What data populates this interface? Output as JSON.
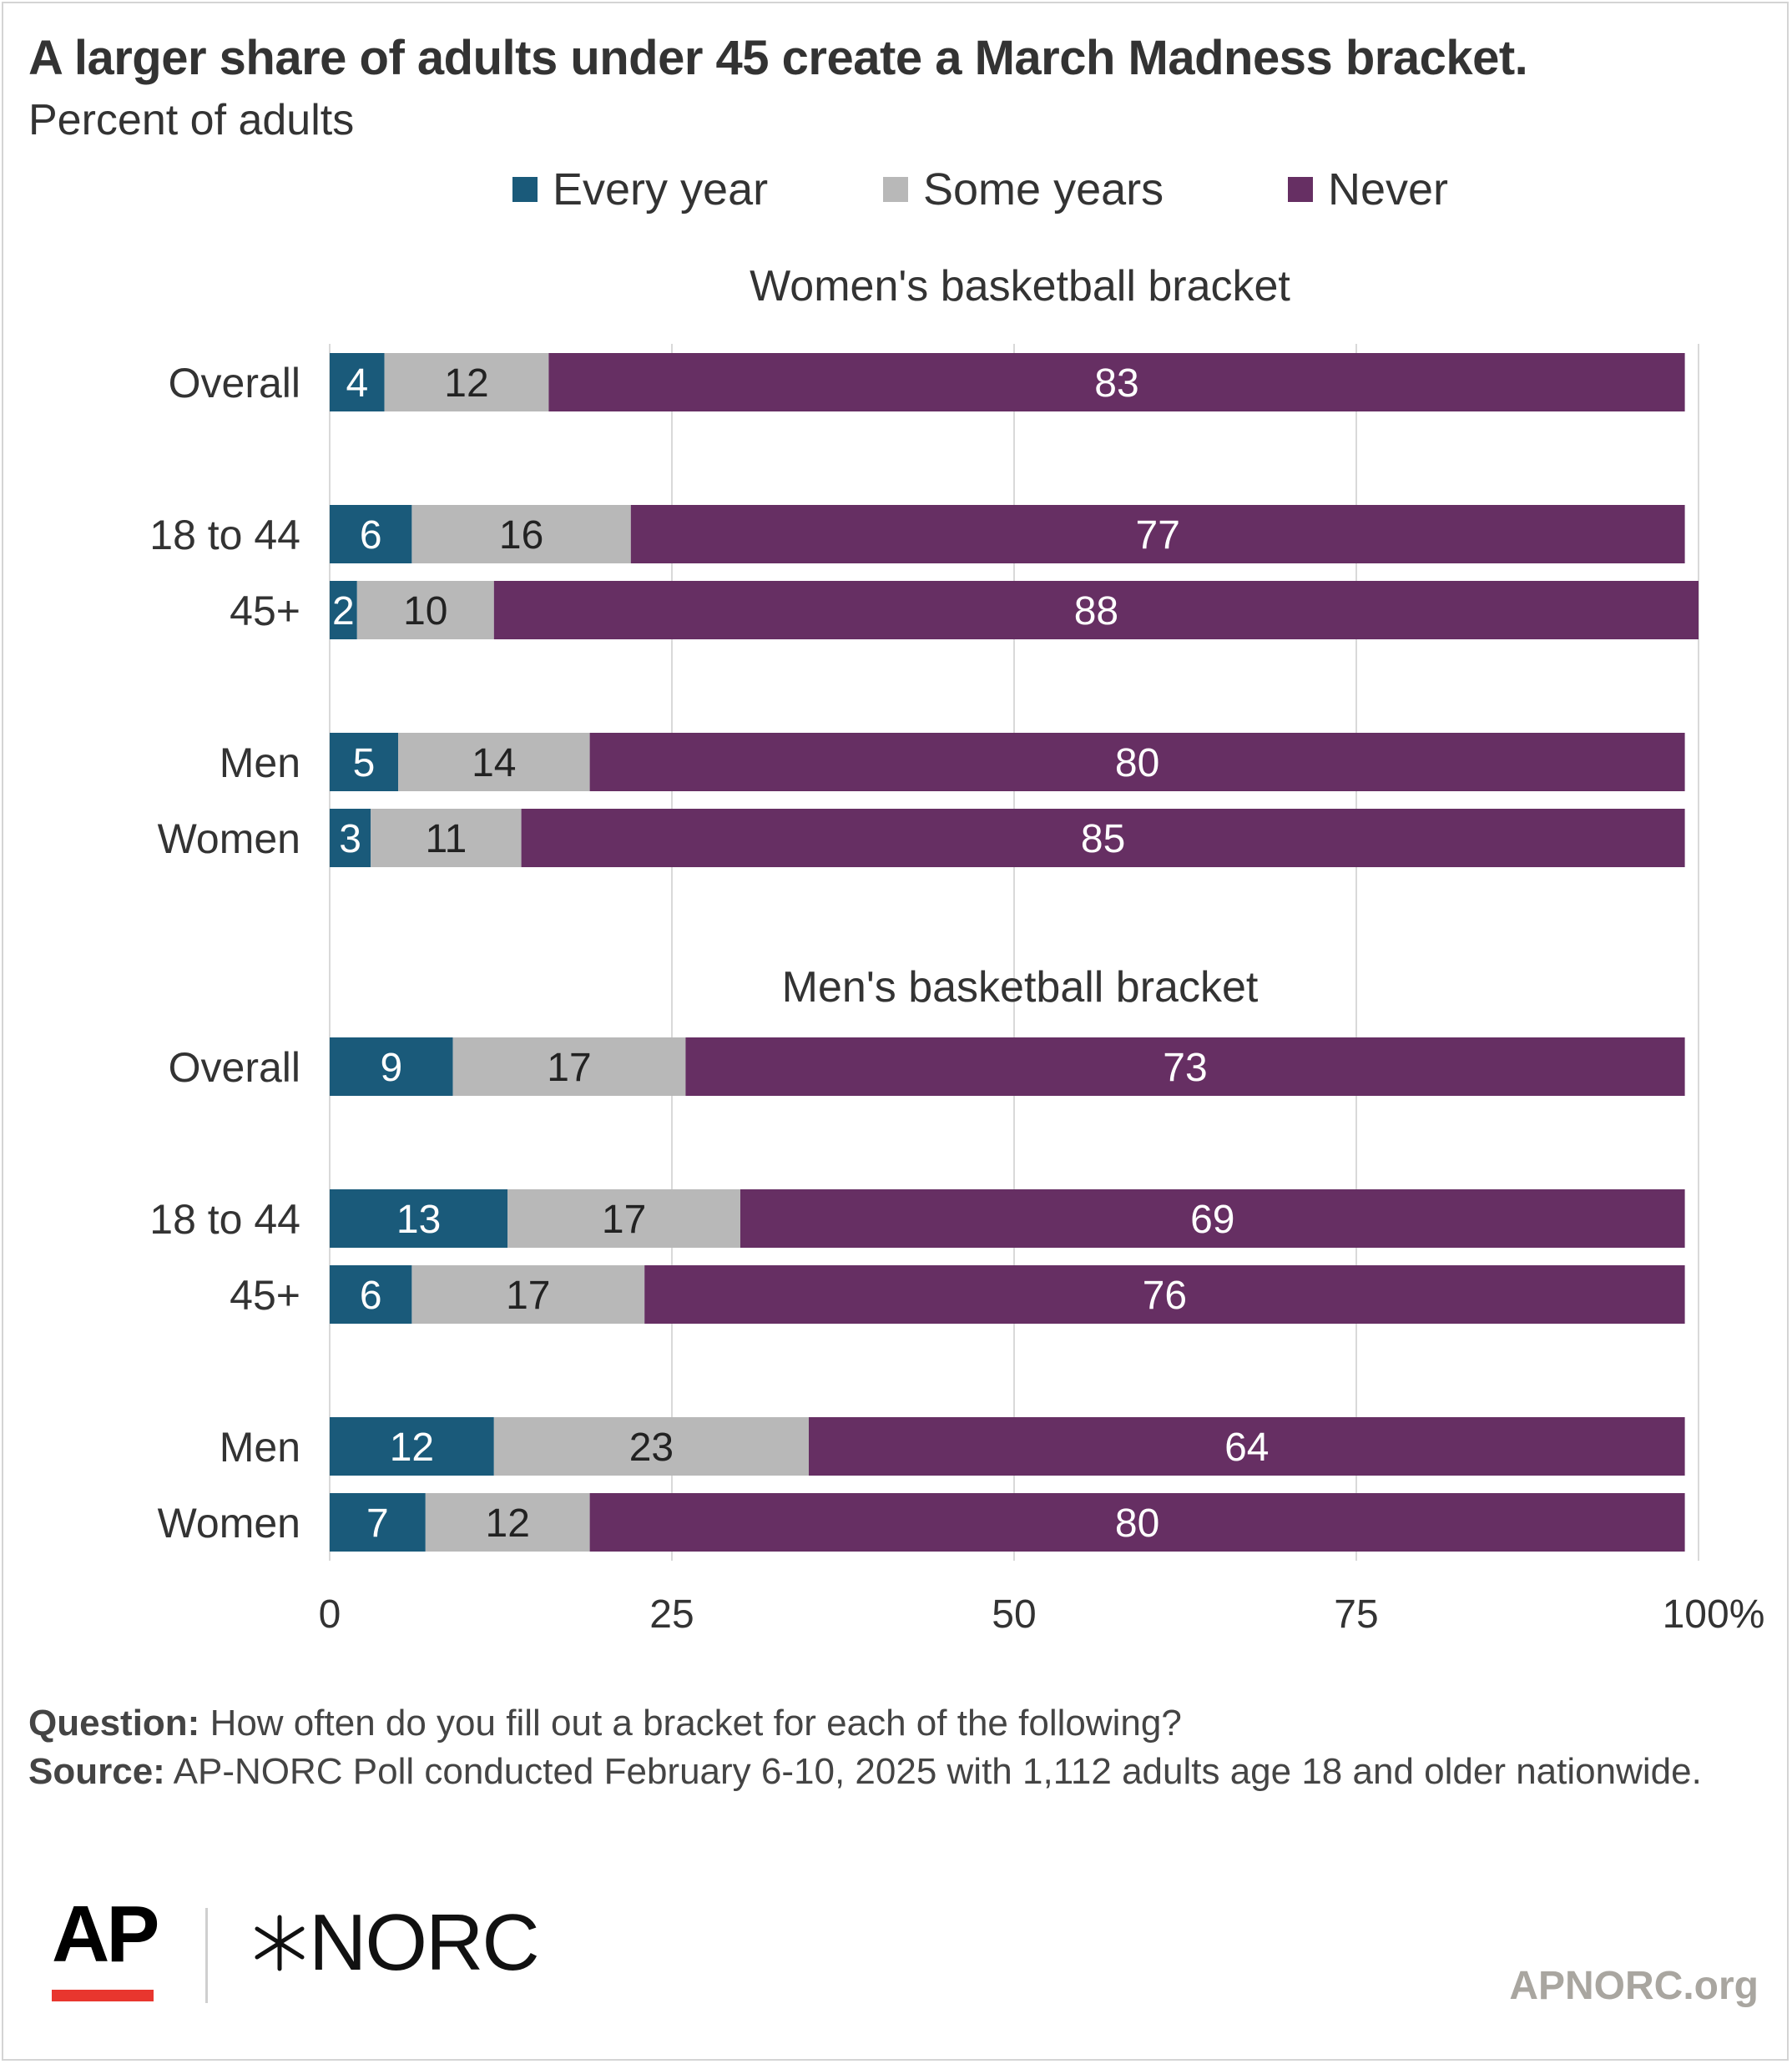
{
  "header": {
    "title": "A larger share of adults under 45 create a March Madness bracket.",
    "subtitle": "Percent of adults"
  },
  "legend": {
    "every_year": "Every year",
    "some_years": "Some years",
    "never": "Never"
  },
  "colors": {
    "every_year": "#1a5a7a",
    "some_years": "#b8b8b8",
    "never": "#662f63",
    "grid": "#d9d9d9",
    "text": "#333333"
  },
  "chart_data": {
    "type": "bar",
    "orientation": "horizontal-stacked",
    "xlim": [
      0,
      100
    ],
    "x_ticks": [
      "0",
      "25",
      "50",
      "75",
      "100%"
    ],
    "x_tick_values": [
      0,
      25,
      50,
      75,
      100
    ],
    "grid": true,
    "legend_position": "top",
    "series_names": [
      "Every year",
      "Some years",
      "Never"
    ],
    "panels": [
      {
        "title": "Women's basketball bracket",
        "rows": [
          {
            "label": "Overall",
            "values": [
              4,
              12,
              83
            ]
          },
          {
            "label": "18 to 44",
            "values": [
              6,
              16,
              77
            ]
          },
          {
            "label": "45+",
            "values": [
              2,
              10,
              88
            ]
          },
          {
            "label": "Men",
            "values": [
              5,
              14,
              80
            ]
          },
          {
            "label": "Women",
            "values": [
              3,
              11,
              85
            ]
          }
        ]
      },
      {
        "title": "Men's basketball bracket",
        "rows": [
          {
            "label": "Overall",
            "values": [
              9,
              17,
              73
            ]
          },
          {
            "label": "18 to 44",
            "values": [
              13,
              17,
              69
            ]
          },
          {
            "label": "45+",
            "values": [
              6,
              17,
              76
            ]
          },
          {
            "label": "Men",
            "values": [
              12,
              23,
              64
            ]
          },
          {
            "label": "Women",
            "values": [
              7,
              12,
              80
            ]
          }
        ]
      }
    ]
  },
  "footer": {
    "question_label": "Question:",
    "question_text": "How often do you fill out a bracket for each of the following?",
    "source_label": "Source:",
    "source_text": "AP-NORC Poll conducted February 6-10, 2025 with 1,112 adults age 18 and older nationwide."
  },
  "logos": {
    "ap": "AP",
    "norc": "NORC",
    "norc_mark_icon": "norc-star-icon"
  },
  "site": "APNORC.org"
}
